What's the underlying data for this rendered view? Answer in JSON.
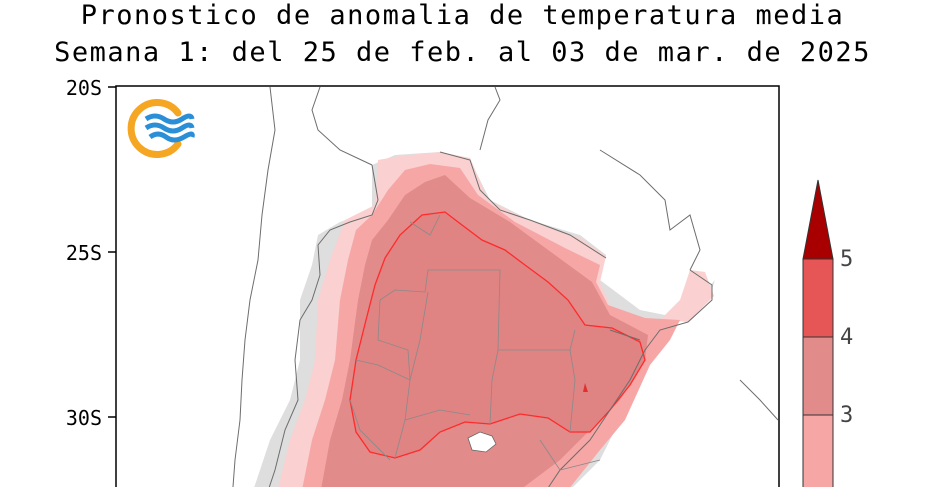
{
  "title": {
    "line1": "Pronostico de anomalia de temperatura media",
    "line2": "Semana 1: del 25 de feb. al 03 de mar. de 2025"
  },
  "latitude_labels": [
    "20S",
    "25S",
    "30S"
  ],
  "colorbar": {
    "labels": [
      "5",
      "4",
      "3"
    ],
    "colors": {
      "above_5": "#a80000",
      "4_to_5": "#e65656",
      "3_to_4": "#e28b8b",
      "2_to_3": "#f7a6a6",
      "1_to_2": "#fac8c8",
      "0_to_1": "#fde3e3"
    }
  },
  "logo": {
    "icon": "smn-logo-icon",
    "colors": {
      "ring": "#f5a623",
      "waves": "#2a8fd6"
    }
  }
}
